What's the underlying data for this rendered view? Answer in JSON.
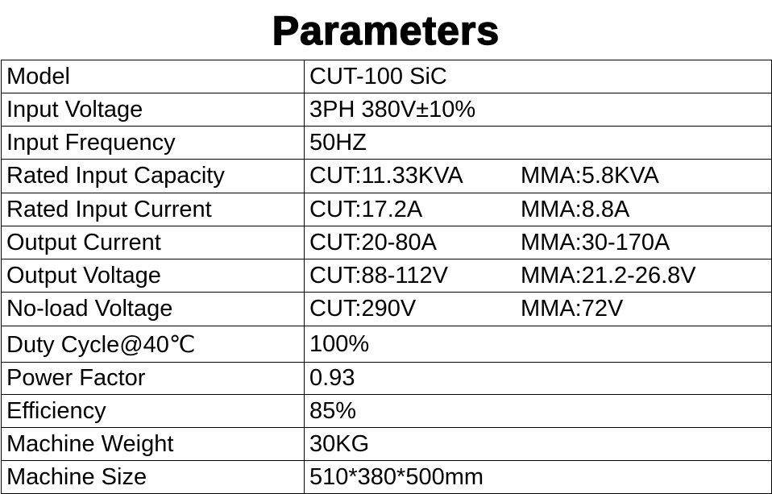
{
  "title": "Parameters",
  "table": {
    "rows": [
      [
        "Model",
        "CUT-100 SiC"
      ],
      [
        "Input Voltage",
        "3PH 380V±10%"
      ],
      [
        "Input Frequency",
        "50HZ"
      ],
      [
        "Rated Input Capacity",
        "CUT:11.33KVA",
        "MMA:5.8KVA"
      ],
      [
        "Rated Input Current",
        "CUT:17.2A",
        "MMA:8.8A"
      ],
      [
        "Output Current",
        "CUT:20-80A",
        "MMA:30-170A"
      ],
      [
        "Output Voltage",
        "CUT:88-112V",
        "MMA:21.2-26.8V"
      ],
      [
        "No-load Voltage",
        "CUT:290V",
        "MMA:72V"
      ],
      [
        "Duty Cycle@40℃",
        "100%"
      ],
      [
        "Power Factor",
        "0.93"
      ],
      [
        "Efficiency",
        "85%"
      ],
      [
        "Machine Weight",
        "30KG"
      ],
      [
        "Machine Size",
        "510*380*500mm"
      ]
    ]
  }
}
